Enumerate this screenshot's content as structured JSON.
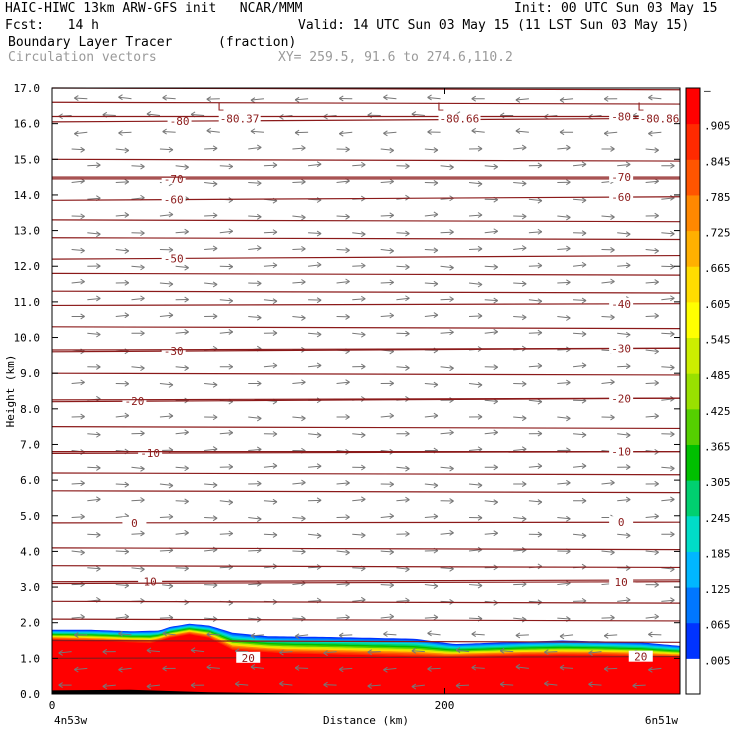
{
  "header": {
    "title_left": "HAIC-HIWC 13km ARW-GFS init   NCAR/MMM",
    "init": "Init: 00 UTC Sun 03 May 15",
    "fcst": "Fcst:   14 h",
    "valid": "Valid: 14 UTC Sun 03 May 15 (11 LST Sun 03 May 15)",
    "field_name": "Boundary Layer Tracer",
    "field_units": "(fraction)",
    "vectors_label": "Circulation vectors",
    "xy": "XY= 259.5, 91.6 to 274.6,110.2"
  },
  "chart_data": {
    "type": "heatmap",
    "ylabel": "Height (km)",
    "xlabel": "Distance (km)",
    "ylim": [
      0,
      17
    ],
    "xlim": [
      0,
      320
    ],
    "y_ticks": [
      "0.0",
      "1.0",
      "2.0",
      "3.0",
      "4.0",
      "5.0",
      "6.0",
      "7.0",
      "8.0",
      "9.0",
      "10.0",
      "11.0",
      "12.0",
      "13.0",
      "14.0",
      "15.0",
      "16.0",
      "17.0"
    ],
    "x_tick_value": 200,
    "x_tick_label": "200",
    "x_left_label": "4n53w",
    "x_right_label": "6n51w",
    "colorbar_labels": [
      ".005",
      ".065",
      ".125",
      ".185",
      ".245",
      ".305",
      ".365",
      ".425",
      ".485",
      ".545",
      ".605",
      ".665",
      ".725",
      ".785",
      ".845",
      ".905",
      "–"
    ],
    "colorbar_colors": [
      "#ffffff",
      "#0033ff",
      "#0077ff",
      "#00b7ff",
      "#00ddc8",
      "#00d070",
      "#00c000",
      "#55d000",
      "#99e000",
      "#ccee00",
      "#ffff00",
      "#ffdd00",
      "#ffb000",
      "#ff8800",
      "#ff5500",
      "#ff2a00",
      "#ff0000"
    ],
    "tracer_top_km": [
      [
        0,
        1.8
      ],
      [
        20,
        1.8
      ],
      [
        40,
        1.76
      ],
      [
        55,
        1.78
      ],
      [
        60,
        1.88
      ],
      [
        70,
        1.97
      ],
      [
        80,
        1.92
      ],
      [
        92,
        1.72
      ],
      [
        110,
        1.62
      ],
      [
        140,
        1.6
      ],
      [
        185,
        1.55
      ],
      [
        205,
        1.4
      ],
      [
        230,
        1.45
      ],
      [
        260,
        1.5
      ],
      [
        300,
        1.45
      ],
      [
        320,
        1.35
      ]
    ],
    "red_top_km": [
      [
        0,
        1.5
      ],
      [
        30,
        1.45
      ],
      [
        50,
        1.4
      ],
      [
        60,
        1.55
      ],
      [
        70,
        1.65
      ],
      [
        80,
        1.55
      ],
      [
        92,
        1.2
      ],
      [
        120,
        1.1
      ],
      [
        160,
        1.05
      ],
      [
        200,
        1.0
      ],
      [
        240,
        1.05
      ],
      [
        280,
        1.05
      ],
      [
        320,
        1.0
      ]
    ],
    "terrain_km": [
      [
        0,
        0.1
      ],
      [
        40,
        0.12
      ],
      [
        80,
        0.05
      ],
      [
        120,
        0.02
      ],
      [
        160,
        0.0
      ],
      [
        320,
        0.0
      ]
    ],
    "temperature_contours": [
      {
        "label": "-80",
        "y0": 16.05,
        "y1": 16.15,
        "label_x": 65
      },
      {
        "label": "-80",
        "y0": 16.2,
        "y1": 16.2,
        "label_x": 290
      },
      {
        "label": "-70",
        "y0": 14.45,
        "y1": 14.45,
        "label_x": 62
      },
      {
        "label": "-70",
        "y0": 14.5,
        "y1": 14.5,
        "label_x": 290
      },
      {
        "label": "-60",
        "y0": 13.85,
        "y1": 13.95,
        "label_x": 62
      },
      {
        "label": "-60",
        "y0": 13.85,
        "y1": 13.95,
        "label_x": 290
      },
      {
        "label": "-50",
        "y0": 12.2,
        "y1": 12.3,
        "label_x": 62
      },
      {
        "label": "-40",
        "y0": 10.9,
        "y1": 10.95,
        "label_x": 290
      },
      {
        "label": "-30",
        "y0": 9.6,
        "y1": 9.7,
        "label_x": 62
      },
      {
        "label": "-30",
        "y0": 9.65,
        "y1": 9.7,
        "label_x": 290
      },
      {
        "label": "-20",
        "y0": 8.2,
        "y1": 8.3,
        "label_x": 42
      },
      {
        "label": "-20",
        "y0": 8.25,
        "y1": 8.3,
        "label_x": 290
      },
      {
        "label": "-10",
        "y0": 6.75,
        "y1": 6.8,
        "label_x": 50
      },
      {
        "label": "-10",
        "y0": 6.8,
        "y1": 6.8,
        "label_x": 290
      },
      {
        "label": "0",
        "y0": 4.8,
        "y1": 4.82,
        "label_x": 42
      },
      {
        "label": "0",
        "y0": 4.8,
        "y1": 4.82,
        "label_x": 290
      },
      {
        "label": "10",
        "y0": 3.15,
        "y1": 3.2,
        "label_x": 50
      },
      {
        "label": "10",
        "y0": 3.1,
        "y1": 3.15,
        "label_x": 290
      },
      {
        "label": "20",
        "y0": 1.0,
        "y1": 1.05,
        "label_x": 100
      },
      {
        "label": "20",
        "y0": 1.0,
        "y1": 1.05,
        "label_x": 300
      }
    ],
    "extra_contour_levels_km": [
      17.0,
      16.6,
      15.0,
      13.3,
      12.8,
      11.8,
      11.3,
      10.3,
      9.0,
      7.5,
      6.2,
      5.7,
      4.1,
      3.6,
      2.6,
      2.1,
      1.5
    ],
    "low_markers": [
      {
        "label": "L",
        "value": "-80.37",
        "x": 88,
        "y": 16.2
      },
      {
        "label": "L",
        "value": "-80.66",
        "x": 200,
        "y": 16.2
      },
      {
        "label": "L",
        "value": "-80.86",
        "x": 302,
        "y": 16.2
      }
    ]
  }
}
